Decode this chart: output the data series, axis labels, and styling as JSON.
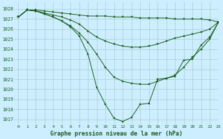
{
  "title": "Graphe pression niveau de la mer (hPa)",
  "background_color": "#cceeff",
  "grid_color": "#aacccc",
  "line_color": "#1a5c1a",
  "xlim": [
    -0.5,
    23
  ],
  "ylim": [
    1016.5,
    1028.7
  ],
  "yticks": [
    1017,
    1018,
    1019,
    1020,
    1021,
    1022,
    1023,
    1024,
    1025,
    1026,
    1027,
    1028
  ],
  "xticks": [
    0,
    1,
    2,
    3,
    4,
    5,
    6,
    7,
    8,
    9,
    10,
    11,
    12,
    13,
    14,
    15,
    16,
    17,
    18,
    19,
    20,
    21,
    22,
    23
  ],
  "series": [
    {
      "x": [
        0,
        1,
        2,
        3,
        4,
        5,
        6,
        7,
        8,
        9,
        10,
        11,
        12,
        13,
        14,
        15,
        16,
        17,
        18,
        19,
        20,
        21,
        22,
        23
      ],
      "y": [
        1027.2,
        1027.9,
        1027.9,
        1027.8,
        1027.7,
        1027.6,
        1027.5,
        1027.4,
        1027.3,
        1027.3,
        1027.3,
        1027.2,
        1027.2,
        1027.2,
        1027.1,
        1027.1,
        1027.1,
        1027.1,
        1027.0,
        1027.0,
        1027.0,
        1027.0,
        1026.9,
        1026.7
      ]
    },
    {
      "x": [
        0,
        1,
        2,
        3,
        4,
        5,
        6,
        7,
        8,
        9,
        10,
        11,
        12,
        13,
        14,
        15,
        16,
        17,
        18,
        19,
        20,
        21,
        22,
        23
      ],
      "y": [
        1027.2,
        1027.9,
        1027.8,
        1027.6,
        1027.4,
        1027.2,
        1026.9,
        1026.5,
        1025.8,
        1025.2,
        1024.8,
        1024.5,
        1024.3,
        1024.2,
        1024.2,
        1024.3,
        1024.5,
        1024.8,
        1025.1,
        1025.3,
        1025.5,
        1025.7,
        1026.0,
        1026.7
      ]
    },
    {
      "x": [
        0,
        1,
        2,
        3,
        4,
        5,
        6,
        7,
        8,
        9,
        10,
        11,
        12,
        13,
        14,
        15,
        16,
        17,
        18,
        19,
        20,
        21,
        22,
        23
      ],
      "y": [
        1027.2,
        1027.9,
        1027.8,
        1027.5,
        1027.2,
        1026.8,
        1026.3,
        1025.6,
        1024.7,
        1023.5,
        1022.2,
        1021.2,
        1020.8,
        1020.6,
        1020.5,
        1020.5,
        1020.8,
        1021.1,
        1021.4,
        1022.2,
        1023.2,
        1024.0,
        1025.0,
        1026.7
      ]
    },
    {
      "x": [
        0,
        1,
        2,
        3,
        4,
        5,
        6,
        7,
        8,
        9,
        10,
        11,
        12,
        13,
        14,
        15,
        16,
        17,
        18,
        19,
        20,
        21,
        22,
        23
      ],
      "y": [
        1027.2,
        1027.9,
        1027.8,
        1027.5,
        1027.2,
        1026.8,
        1026.2,
        1025.3,
        1023.5,
        1020.2,
        1018.5,
        1017.1,
        1016.8,
        1017.2,
        1018.5,
        1018.6,
        1021.0,
        1021.1,
        1021.3,
        1022.9,
        1023.0,
        1024.4,
        1025.2,
        1026.7
      ]
    }
  ]
}
